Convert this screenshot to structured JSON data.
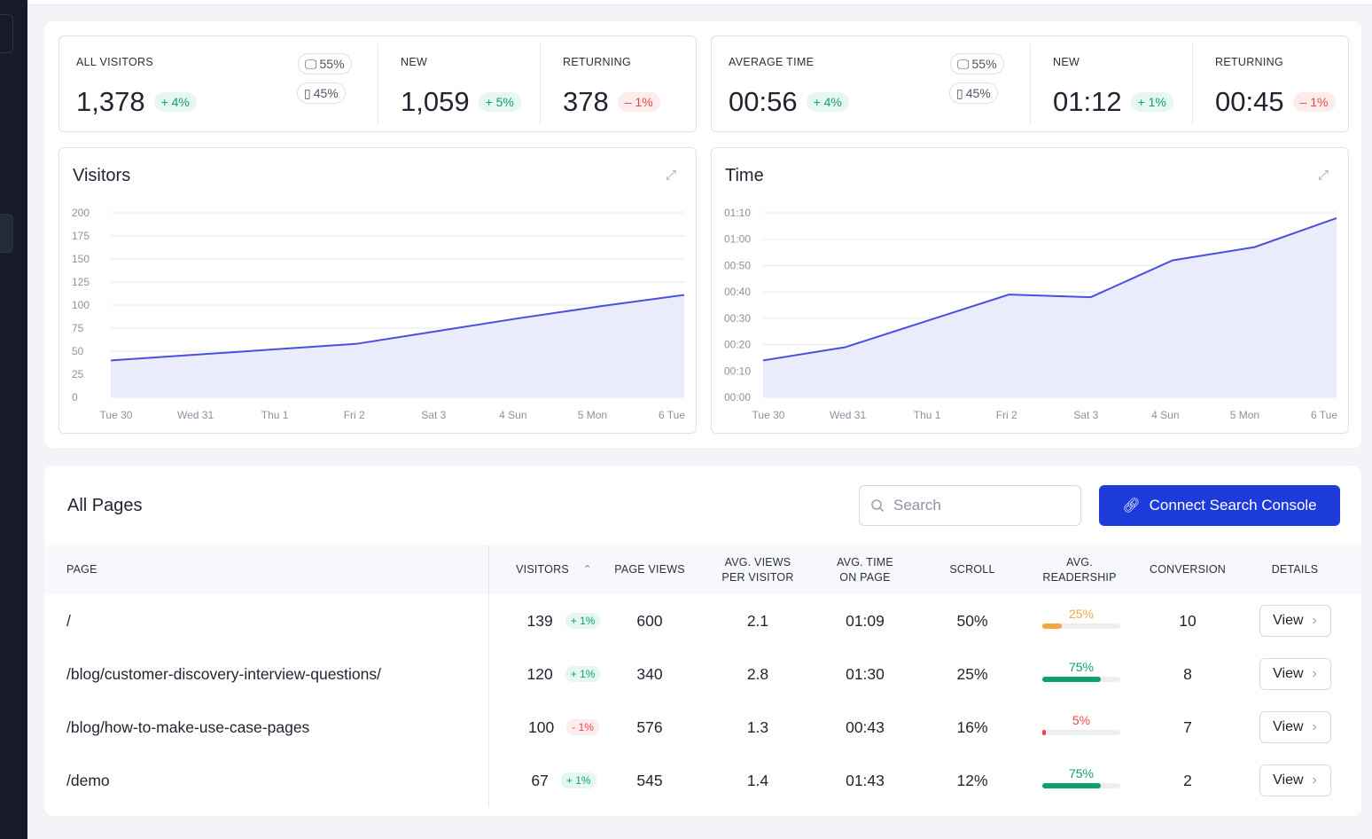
{
  "visitors_stats": {
    "all_label": "ALL VISITORS",
    "all_value": "1,378",
    "all_change": "+ 4%",
    "desktop": "55%",
    "mobile": "45%",
    "new_label": "NEW",
    "new_value": "1,059",
    "new_change": "+ 5%",
    "ret_label": "RETURNING",
    "ret_value": "378",
    "ret_change": "– 1%"
  },
  "time_stats": {
    "all_label": "AVERAGE TIME",
    "all_value": "00:56",
    "all_change": "+ 4%",
    "desktop": "55%",
    "mobile": "45%",
    "new_label": "NEW",
    "new_value": "01:12",
    "new_change": "+ 1%",
    "ret_label": "RETURNING",
    "ret_value": "00:45",
    "ret_change": "– 1%"
  },
  "chart_data": [
    {
      "type": "area",
      "title": "Visitors",
      "categories": [
        "Tue 30",
        "Wed 31",
        "Thu 1",
        "Fri 2",
        "Sat 3",
        "4 Sun",
        "5 Mon",
        "6 Tue"
      ],
      "values": [
        40,
        46,
        52,
        58,
        72,
        86,
        99,
        111
      ],
      "ylim": [
        0,
        200
      ],
      "yticks": [
        "0",
        "25",
        "50",
        "75",
        "100",
        "125",
        "150",
        "175",
        "200"
      ],
      "grid": true,
      "color": "#4a4fe0"
    },
    {
      "type": "area",
      "title": "Time",
      "categories": [
        "Tue 30",
        "Wed 31",
        "Thu 1",
        "Fri 2",
        "Sat 3",
        "4 Sun",
        "5 Mon",
        "6 Tue"
      ],
      "values_seconds": [
        14,
        19,
        29,
        39,
        38,
        52,
        57,
        68
      ],
      "ylim_seconds": [
        0,
        70
      ],
      "yticks": [
        "00:00",
        "00:10",
        "00:20",
        "00:30",
        "00:40",
        "00:50",
        "01:00",
        "01:10"
      ],
      "grid": true,
      "color": "#4a4fe0"
    }
  ],
  "pages": {
    "title": "All Pages",
    "search_placeholder": "Search",
    "connect_label": "Connect Search Console",
    "accent": "#1d3bdb",
    "columns": [
      "PAGE",
      "VISITORS",
      "PAGE VIEWS",
      "AVG. VIEWS\nPER VISITOR",
      "AVG. TIME\nON PAGE",
      "SCROLL",
      "AVG.\nREADERSHIP",
      "CONVERSION",
      "DETAILS"
    ],
    "rows": [
      {
        "page": "/",
        "visitors": "139",
        "change": "+ 1%",
        "dir": "up",
        "views": "600",
        "vpv": "2.1",
        "time": "01:09",
        "scroll": "50%",
        "readership": 25,
        "readership_label": "25%",
        "read_color": "#f6a640",
        "conversion": "10",
        "details": "View"
      },
      {
        "page": "/blog/customer-discovery-interview-questions/",
        "visitors": "120",
        "change": "+ 1%",
        "dir": "up",
        "views": "340",
        "vpv": "2.8",
        "time": "01:30",
        "scroll": "25%",
        "readership": 75,
        "readership_label": "75%",
        "read_color": "#0e9f6e",
        "conversion": "8",
        "details": "View"
      },
      {
        "page": "/blog/how-to-make-use-case-pages",
        "visitors": "100",
        "change": "- 1%",
        "dir": "down",
        "views": "576",
        "vpv": "1.3",
        "time": "00:43",
        "scroll": "16%",
        "readership": 5,
        "readership_label": "5%",
        "read_color": "#ef4444",
        "conversion": "7",
        "details": "View"
      },
      {
        "page": "/demo",
        "visitors": "67",
        "change": "+ 1%",
        "dir": "up",
        "views": "545",
        "vpv": "1.4",
        "time": "01:43",
        "scroll": "12%",
        "readership": 75,
        "readership_label": "75%",
        "read_color": "#0e9f6e",
        "conversion": "2",
        "details": "View"
      }
    ]
  }
}
